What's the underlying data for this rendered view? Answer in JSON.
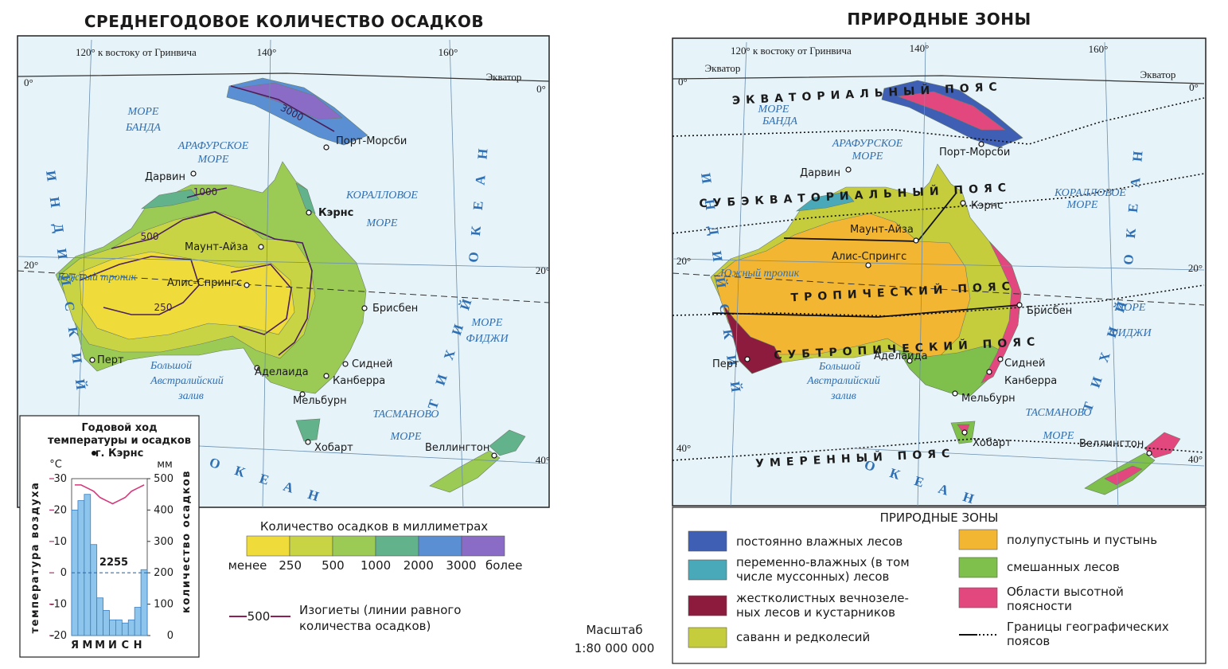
{
  "left_map": {
    "title": "СРЕДНЕГОДОВОЕ КОЛИЧЕСТВО ОСАДКОВ",
    "grid_labels": [
      "120° к востоку от Гринвича",
      "140°",
      "160°",
      "0°",
      "0°",
      "20°",
      "20°",
      "40°"
    ],
    "equator": "Экватор",
    "seas": [
      "МОРЕ",
      "БАНДА",
      "АРАФУРСКОЕ",
      "МОРЕ",
      "КОРАЛЛОВОЕ",
      "МОРЕ",
      "МОРЕ",
      "ФИДЖИ",
      "ТАСМАНОВО",
      "МОРЕ",
      "Большой",
      "Австралийский",
      "залив",
      "Южный тропик"
    ],
    "oceans": [
      "И Н Д И Й С К И Й",
      "О К Е А Н",
      "Т И Х И Й",
      "О К Е А Н"
    ],
    "cities": [
      "Порт-Морсби",
      "Дарвин",
      "Кэрнс",
      "Маунт-Айза",
      "Алис-Спрингс",
      "Брисбен",
      "Перт",
      "Аделаида",
      "Сидней",
      "Канберра",
      "Мельбурн",
      "Хобарт",
      "Веллингтон"
    ],
    "isohyets": [
      3000,
      1000,
      500,
      250
    ]
  },
  "right_map": {
    "title": "ПРИРОДНЫЕ ЗОНЫ",
    "grid_labels": [
      "120° к востоку от Гринвича",
      "140°",
      "160°",
      "0°",
      "0°",
      "20°",
      "20°",
      "40°",
      "40°"
    ],
    "equator": [
      "Экватор",
      "Экватор"
    ],
    "seas": [
      "МОРЕ",
      "БАНДА",
      "АРАФУРСКОЕ",
      "МОРЕ",
      "КОРАЛЛОВОЕ",
      "МОРЕ",
      "МОРЕ",
      "ФИДЖИ",
      "ТАСМАНОВО",
      "МОРЕ",
      "Большой",
      "Австралийский",
      "залив",
      "Южный тропик"
    ],
    "oceans": [
      "И Н Д И Й С К И Й",
      "О К Е А Н",
      "Т И Х И Й",
      "О К Е А Н"
    ],
    "cities": [
      "Порт-Морсби",
      "Дарвин",
      "Кэрнс",
      "Маунт-Айза",
      "Алис-Спрингс",
      "Брисбен",
      "Перт",
      "Аделаида",
      "Сидней",
      "Канберра",
      "Мельбурн",
      "Хобарт",
      "Веллингтон"
    ],
    "belts": [
      "ЭКВАТОРИАЛЬНЫЙ ПОЯС",
      "СУБЭКВАТОРИАЛЬНЫЙ ПОЯС",
      "ТРОПИЧЕСКИЙ ПОЯС",
      "СУБТРОПИЧЕСКИЙ ПОЯС",
      "УМЕРЕННЫЙ ПОЯС"
    ]
  },
  "precip_legend": {
    "title": "Количество осадков в миллиметрах",
    "colors": [
      "#efdc3a",
      "#c8d444",
      "#9ccb55",
      "#62b28c",
      "#5b8fd4",
      "#8a6cc6"
    ],
    "labels": [
      "менее",
      250,
      500,
      1000,
      2000,
      3000,
      "более"
    ],
    "isohyet_value": 500,
    "isohyet_color": "#8b2257",
    "isohyet_text": [
      "Изогиеты (линии равного",
      "количества осадков)"
    ]
  },
  "scale": [
    "Масштаб",
    "1:80 000 000"
  ],
  "zones_legend": {
    "title": "ПРИРОДНЫЕ ЗОНЫ",
    "items": [
      {
        "color": "#3f5fb4",
        "lines": [
          "постоянно влажных лесов"
        ]
      },
      {
        "color": "#4aa9b8",
        "lines": [
          "переменно-влажных (в том",
          "числе муссонных) лесов"
        ]
      },
      {
        "color": "#8c1b3d",
        "lines": [
          "жестколистных вечнозеле-",
          "ных лесов и кустарников"
        ]
      },
      {
        "color": "#c5cd3c",
        "lines": [
          "саванн и редколесий"
        ]
      },
      {
        "color": "#f2b632",
        "lines": [
          "полупустынь и пустынь"
        ]
      },
      {
        "color": "#7fbf4c",
        "lines": [
          "смешанных лесов"
        ]
      },
      {
        "color": "#e2487e",
        "lines": [
          "Области высотной",
          "поясности"
        ]
      }
    ],
    "boundaries": [
      "Границы географических",
      "поясов"
    ]
  },
  "chart_data": {
    "type": "combo",
    "title": [
      "Годовой ход",
      "температуры и осадков",
      "г. Кэрнс"
    ],
    "categories": [
      "Я",
      null,
      "М",
      null,
      "М",
      null,
      "И",
      null,
      "С",
      null,
      "Н",
      null
    ],
    "precipitation": [
      400,
      430,
      450,
      290,
      120,
      80,
      50,
      50,
      40,
      50,
      90,
      210
    ],
    "precipitation_color": "#8ec5ec",
    "temperature": [
      28,
      28,
      27,
      26,
      24,
      23,
      22,
      23,
      24,
      26,
      27,
      28
    ],
    "temperature_color": "#d4387a",
    "y_label": "температура воздуха",
    "y2_label": "количество осадков",
    "y_unit": "°C",
    "y2_unit": "мм",
    "ylim": [
      -20,
      30
    ],
    "yticks": [
      -20,
      -10,
      0,
      10,
      20,
      30
    ],
    "y2lim": [
      0,
      500
    ],
    "y2ticks": [
      0,
      100,
      200,
      300,
      400,
      500
    ],
    "annotation": 2255
  }
}
